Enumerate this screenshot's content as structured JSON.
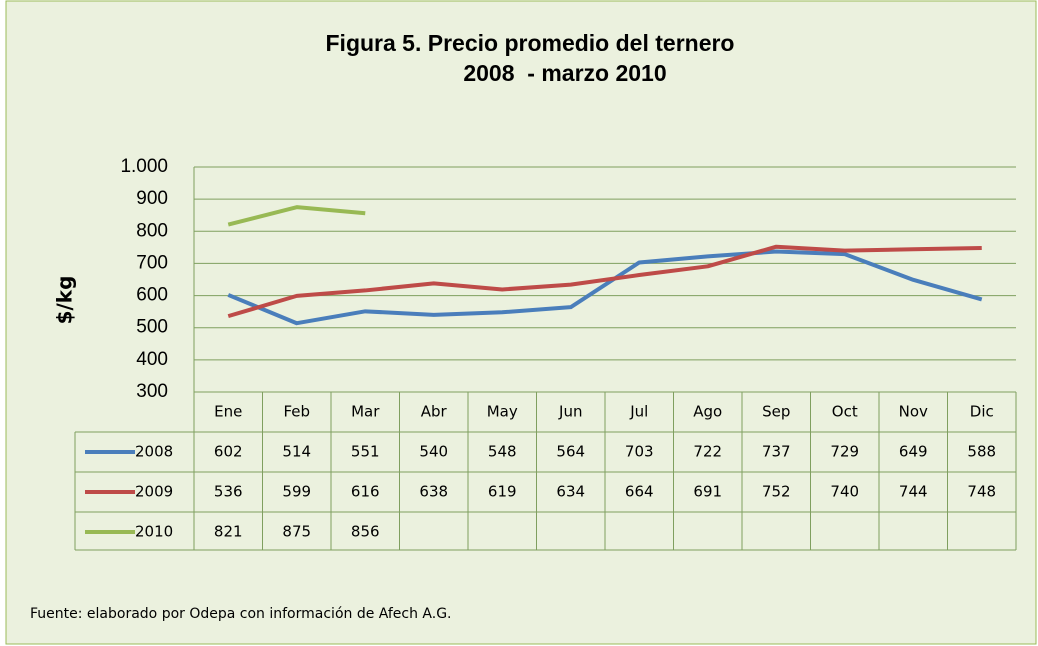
{
  "chart_data": {
    "type": "line",
    "title": "Figura 5. Precio promedio del ternero",
    "subtitle": "2008  - marzo 2010",
    "y_label": "$/kg",
    "categories": [
      "Ene",
      "Feb",
      "Mar",
      "Abr",
      "May",
      "Jun",
      "Jul",
      "Ago",
      "Sep",
      "Oct",
      "Nov",
      "Dic"
    ],
    "series": [
      {
        "name": "2008",
        "color": "#4a7ebb",
        "values": [
          602,
          514,
          551,
          540,
          548,
          564,
          703,
          722,
          737,
          729,
          649,
          588
        ]
      },
      {
        "name": "2009",
        "color": "#be4b48",
        "values": [
          536,
          599,
          616,
          638,
          619,
          634,
          664,
          691,
          752,
          740,
          744,
          748
        ]
      },
      {
        "name": "2010",
        "color": "#98b954",
        "values": [
          821,
          875,
          856,
          null,
          null,
          null,
          null,
          null,
          null,
          null,
          null,
          null
        ]
      }
    ],
    "ylim": [
      300,
      1000
    ],
    "yticks": [
      300,
      400,
      500,
      600,
      700,
      800,
      900,
      {
        "value": 1000,
        "label": "1.000"
      }
    ],
    "grid": true,
    "source": "Fuente: elaborado por Odepa con información de Afech A.G."
  }
}
